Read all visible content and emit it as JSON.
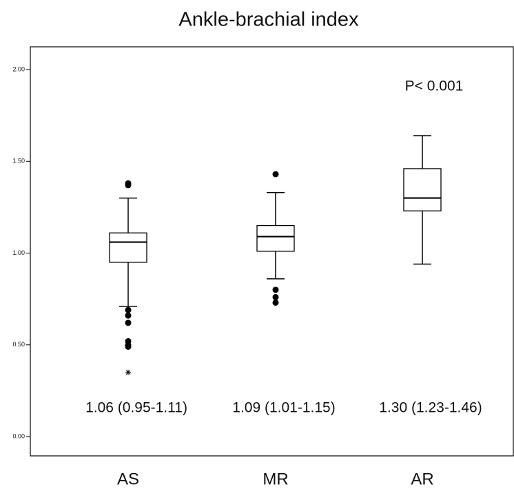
{
  "chart_data": {
    "type": "box",
    "title": "Ankle-brachial index",
    "categories": [
      "AS",
      "MR",
      "AR"
    ],
    "boxes": [
      {
        "whislo": 0.71,
        "q1": 0.95,
        "med": 1.06,
        "q3": 1.11,
        "whishi": 1.3,
        "fliers": [
          1.38,
          1.37,
          0.69,
          0.66,
          0.62,
          0.52,
          0.5,
          0.49
        ],
        "extremes": [
          0.35
        ]
      },
      {
        "whislo": 0.86,
        "q1": 1.01,
        "med": 1.09,
        "q3": 1.15,
        "whishi": 1.33,
        "fliers": [
          1.43,
          0.8,
          0.76,
          0.73
        ],
        "extremes": []
      },
      {
        "whislo": 0.94,
        "q1": 1.23,
        "med": 1.3,
        "q3": 1.46,
        "whishi": 1.64,
        "fliers": [],
        "extremes": []
      }
    ],
    "summary_labels": [
      "1.06 (0.95-1.11)",
      "1.09 (1.01-1.15)",
      "1.30 (1.23-1.46)"
    ],
    "annotation": "P< 0.001",
    "ylim": [
      -0.105,
      2.124
    ],
    "yticks": [
      {
        "value": 0,
        "label": "0.00"
      },
      {
        "value": 0.5,
        "label": "0.50"
      },
      {
        "value": 1,
        "label": "1.00"
      },
      {
        "value": 1.5,
        "label": "1.50"
      },
      {
        "value": 2,
        "label": "2.00"
      }
    ]
  }
}
